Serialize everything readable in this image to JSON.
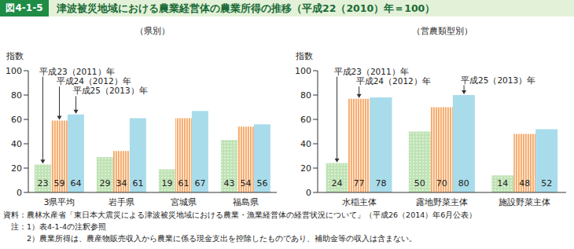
{
  "header": {
    "label": "図4-1-5",
    "title": "津波被災地域における農業経営体の農業所得の推移（平成22（2010）年＝100）"
  },
  "chart_data": [
    {
      "type": "bar",
      "title": "（県別）",
      "y_label": "指数",
      "categories": [
        "3県平均",
        "岩手県",
        "宮城県",
        "福島県"
      ],
      "series": [
        {
          "name": "平成23（2011）年",
          "color": "#bfe3b4",
          "values": [
            23,
            29,
            19,
            43
          ]
        },
        {
          "name": "平成24（2012）年",
          "color": "#f5a868",
          "values": [
            59,
            34,
            61,
            54
          ]
        },
        {
          "name": "平成25（2013）年",
          "color": "#a9dcea",
          "values": [
            64,
            61,
            67,
            56
          ]
        }
      ],
      "ylim": [
        0,
        100
      ],
      "yticks": [
        0,
        20,
        40,
        60,
        80,
        100
      ],
      "grid": false,
      "data_labels": true
    },
    {
      "type": "bar",
      "title": "（営農類型別）",
      "y_label": "指数",
      "categories": [
        "水稲主体",
        "露地野菜主体",
        "施設野菜主体"
      ],
      "series": [
        {
          "name": "平成23（2011）年",
          "color": "#bfe3b4",
          "values": [
            24,
            50,
            14
          ]
        },
        {
          "name": "平成24（2012）年",
          "color": "#f5a868",
          "values": [
            77,
            70,
            48
          ]
        },
        {
          "name": "平成25（2013）年",
          "color": "#a9dcea",
          "values": [
            78,
            80,
            52
          ]
        }
      ],
      "ylim": [
        0,
        100
      ],
      "yticks": [
        0,
        20,
        40,
        60,
        80,
        100
      ],
      "grid": false,
      "data_labels": true
    }
  ],
  "source": "資料：農林水産省「東日本大震災による津波被災地域における農業・漁業経営体の経営状況について」（平成26（2014）年6月公表）",
  "notes_label": "注：",
  "notes": [
    "1）表4-1-4の注釈参照",
    "2）農業所得は、農産物販売収入から農業に係る現金支出を控除したものであり、補助金等の収入は含まない。"
  ]
}
